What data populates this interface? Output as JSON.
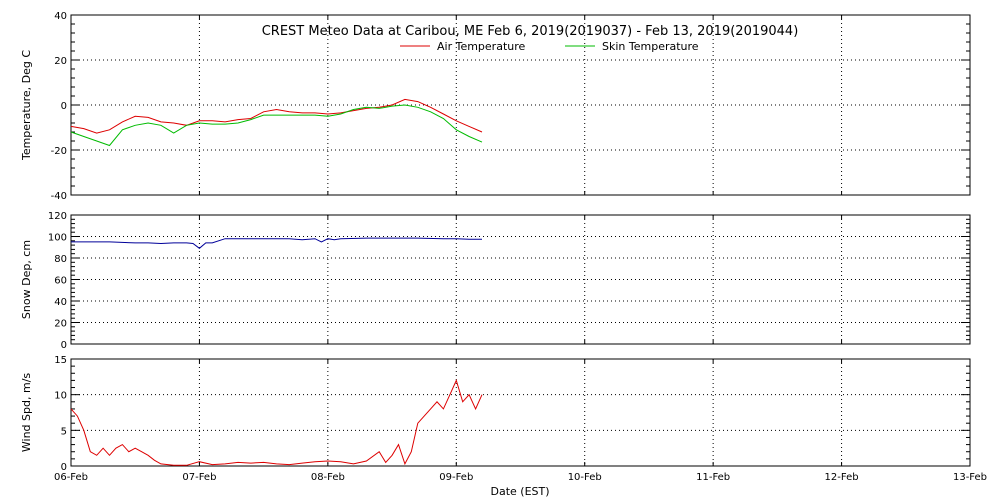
{
  "chart_data": {
    "title": "CREST Meteo Data at Caribou, ME   Feb  6, 2019(2019037) - Feb 13, 2019(2019044)",
    "xlabel": "Date (EST)",
    "x_ticks": [
      "06-Feb",
      "07-Feb",
      "08-Feb",
      "09-Feb",
      "10-Feb",
      "11-Feb",
      "12-Feb",
      "13-Feb"
    ],
    "x_range_days": [
      0,
      7
    ],
    "grid": true,
    "panels": [
      {
        "type": "line",
        "ylabel": "Temperature, Deg C",
        "ylim": [
          -40,
          40
        ],
        "yticks": [
          -40,
          -20,
          0,
          20,
          40
        ],
        "legend": "top-center",
        "series": [
          {
            "name": "Air Temperature",
            "color": "#dd0000",
            "x": [
              0.0,
              0.1,
              0.2,
              0.3,
              0.4,
              0.5,
              0.6,
              0.7,
              0.8,
              0.9,
              1.0,
              1.1,
              1.2,
              1.3,
              1.4,
              1.5,
              1.6,
              1.7,
              1.8,
              1.9,
              2.0,
              2.1,
              2.2,
              2.3,
              2.4,
              2.5,
              2.6,
              2.7,
              2.8,
              2.9,
              3.0,
              3.1,
              3.2
            ],
            "y": [
              -9.5,
              -10.5,
              -12.5,
              -11,
              -7.5,
              -5,
              -5.5,
              -7.5,
              -8,
              -9,
              -7,
              -7,
              -7.5,
              -6.5,
              -6,
              -3,
              -2,
              -3,
              -3.5,
              -3.5,
              -4,
              -3.5,
              -2.5,
              -1.5,
              -1,
              0,
              2.5,
              1.5,
              -1,
              -4,
              -7,
              -9.5,
              -12
            ]
          },
          {
            "name": "Skin Temperature",
            "color": "#00bb00",
            "x": [
              0.0,
              0.1,
              0.2,
              0.3,
              0.4,
              0.5,
              0.6,
              0.7,
              0.8,
              0.9,
              1.0,
              1.1,
              1.2,
              1.3,
              1.4,
              1.5,
              1.6,
              1.7,
              1.8,
              1.9,
              2.0,
              2.1,
              2.2,
              2.3,
              2.4,
              2.5,
              2.6,
              2.7,
              2.8,
              2.9,
              3.0,
              3.1,
              3.2
            ],
            "y": [
              -12,
              -14,
              -16,
              -18,
              -11,
              -9,
              -8,
              -9,
              -12.5,
              -9,
              -8,
              -8.5,
              -8.5,
              -8,
              -6.5,
              -4.5,
              -4.5,
              -4.5,
              -4.5,
              -4.5,
              -5,
              -4,
              -2,
              -1,
              -1.5,
              -0.5,
              0,
              -1,
              -3,
              -6,
              -11,
              -14,
              -16.5
            ]
          }
        ]
      },
      {
        "type": "line",
        "ylabel": "Snow Dep, cm",
        "ylim": [
          0,
          120
        ],
        "yticks": [
          0,
          20,
          40,
          60,
          80,
          100,
          120
        ],
        "series": [
          {
            "name": "",
            "color": "#000099",
            "x": [
              0.0,
              0.3,
              0.5,
              0.6,
              0.7,
              0.8,
              0.9,
              0.95,
              1.0,
              1.05,
              1.1,
              1.2,
              1.3,
              1.5,
              1.7,
              1.8,
              1.9,
              1.95,
              2.0,
              2.05,
              2.1,
              2.3,
              2.5,
              2.7,
              2.9,
              3.0,
              3.1,
              3.2
            ],
            "y": [
              95,
              95,
              94,
              94,
              93.5,
              94,
              94,
              93.5,
              89,
              94,
              94,
              98,
              98,
              98,
              98,
              97,
              98,
              95,
              98,
              97,
              98,
              98.5,
              98.5,
              98.5,
              98,
              98,
              97.5,
              97.5
            ]
          }
        ]
      },
      {
        "type": "line",
        "ylabel": "Wind Spd, m/s",
        "ylim": [
          0,
          15
        ],
        "yticks": [
          0,
          5,
          10,
          15
        ],
        "series": [
          {
            "name": "",
            "color": "#dd0000",
            "x": [
              0.0,
              0.05,
              0.1,
              0.15,
              0.2,
              0.25,
              0.3,
              0.35,
              0.4,
              0.45,
              0.5,
              0.55,
              0.6,
              0.65,
              0.7,
              0.8,
              0.9,
              1.0,
              1.1,
              1.2,
              1.3,
              1.4,
              1.5,
              1.6,
              1.7,
              1.8,
              1.9,
              2.0,
              2.1,
              2.2,
              2.3,
              2.4,
              2.45,
              2.5,
              2.55,
              2.6,
              2.65,
              2.7,
              2.75,
              2.8,
              2.85,
              2.9,
              2.95,
              3.0,
              3.05,
              3.1,
              3.15,
              3.2
            ],
            "y": [
              8,
              7,
              5,
              2,
              1.5,
              2.5,
              1.5,
              2.5,
              3,
              2,
              2.5,
              2,
              1.5,
              0.8,
              0.3,
              0.1,
              0.1,
              0.6,
              0.2,
              0.3,
              0.5,
              0.4,
              0.5,
              0.3,
              0.2,
              0.4,
              0.6,
              0.7,
              0.6,
              0.3,
              0.7,
              2,
              0.5,
              1.5,
              3,
              0.3,
              2,
              6,
              7,
              8,
              9,
              8,
              10,
              12,
              9,
              10,
              8,
              10
            ]
          }
        ]
      }
    ]
  }
}
